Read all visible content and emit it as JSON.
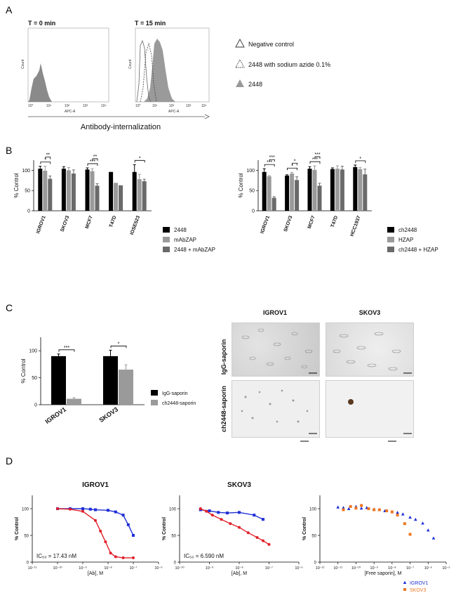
{
  "panels": {
    "a": "A",
    "b": "B",
    "c": "C",
    "d": "D"
  },
  "panel_a": {
    "hist1_title": "T = 0 min",
    "hist2_title": "T = 15 min",
    "y_label": "Count",
    "x_label": "APC-A",
    "x_ticks": [
      "10°",
      "10¹",
      "10²",
      "10³",
      "10⁴"
    ],
    "caption": "Antibody-internalization",
    "legend": [
      "Negative control",
      "2448 with sodium azide 0.1%",
      "2448"
    ]
  },
  "chart_data": [
    {
      "type": "bar",
      "ylabel": "% Control",
      "ylim": [
        0,
        125
      ],
      "yticks": [
        "0",
        "50",
        "100"
      ],
      "categories": [
        "IGROV1",
        "SKOV3",
        "MCF7",
        "T47D",
        "IOSE523"
      ],
      "series": [
        {
          "name": "2448",
          "color": "#000000",
          "values": [
            104,
            104,
            102,
            96,
            96
          ]
        },
        {
          "name": "mAbZAP",
          "color": "#9a9a9a",
          "values": [
            99,
            100,
            98,
            69,
            78
          ]
        },
        {
          "name": "2448 + mAbZAP",
          "color": "#6a6a6a",
          "values": [
            79,
            92,
            62,
            63,
            73
          ]
        }
      ],
      "errors": [
        [
          6,
          5,
          4,
          0,
          18
        ],
        [
          11,
          7,
          6,
          0,
          12
        ],
        [
          7,
          9,
          5,
          0,
          5
        ]
      ],
      "significance": [
        {
          "cat": 0,
          "a": 0,
          "b": 2,
          "label": "*"
        },
        {
          "cat": 0,
          "a": 1,
          "b": 2,
          "label": "**"
        },
        {
          "cat": 2,
          "a": 0,
          "b": 2,
          "label": "***"
        },
        {
          "cat": 2,
          "a": 1,
          "b": 2,
          "label": "**"
        },
        {
          "cat": 4,
          "a": 0,
          "b": 2,
          "label": "*"
        }
      ]
    },
    {
      "type": "bar",
      "ylabel": "% Control",
      "ylim": [
        0,
        125
      ],
      "yticks": [
        "0",
        "50",
        "100"
      ],
      "categories": [
        "IGROV1",
        "SKOV3",
        "MCF7",
        "T47D",
        "HCC1937"
      ],
      "series": [
        {
          "name": "ch2448",
          "color": "#000000",
          "values": [
            96,
            87,
            104,
            103,
            108
          ]
        },
        {
          "name": "HZAP",
          "color": "#9a9a9a",
          "values": [
            85,
            92,
            101,
            104,
            103
          ]
        },
        {
          "name": "ch2448 + HZAP",
          "color": "#6a6a6a",
          "values": [
            32,
            76,
            62,
            102,
            90
          ]
        }
      ],
      "errors": [
        [
          8,
          2,
          5,
          3,
          5
        ],
        [
          2,
          3,
          10,
          7,
          4
        ],
        [
          3,
          8,
          6,
          8,
          13
        ]
      ],
      "significance": [
        {
          "cat": 0,
          "a": 0,
          "b": 2,
          "label": "***"
        },
        {
          "cat": 0,
          "a": 1,
          "b": 2,
          "label": "***"
        },
        {
          "cat": 1,
          "a": 0,
          "b": 2,
          "label": "*"
        },
        {
          "cat": 1,
          "a": 1,
          "b": 2,
          "label": "*"
        },
        {
          "cat": 2,
          "a": 0,
          "b": 2,
          "label": "***"
        },
        {
          "cat": 2,
          "a": 1,
          "b": 2,
          "label": "***"
        },
        {
          "cat": 4,
          "a": 0,
          "b": 2,
          "label": "*"
        }
      ]
    },
    {
      "type": "bar",
      "ylabel": "% Control",
      "ylim": [
        0,
        125
      ],
      "yticks": [
        "0",
        "50",
        "100"
      ],
      "categories": [
        "IGROV1",
        "SKOV3"
      ],
      "series": [
        {
          "name": "IgG-saporin",
          "color": "#000000",
          "values": [
            90,
            90
          ]
        },
        {
          "name": "ch2448-saporin",
          "color": "#9a9a9a",
          "values": [
            11,
            65
          ]
        }
      ],
      "errors": [
        [
          4,
          11
        ],
        [
          2,
          9
        ]
      ],
      "significance": [
        {
          "cat": 0,
          "a": 0,
          "b": 1,
          "label": "***"
        },
        {
          "cat": 1,
          "a": 0,
          "b": 1,
          "label": "*"
        }
      ]
    },
    {
      "type": "line",
      "title": "IGROV1",
      "xlabel": "[Ab], M",
      "ylabel": "% Control",
      "xlim_log10": [
        -11,
        -6
      ],
      "ylim": [
        0,
        125
      ],
      "annotation": "IC₅₀ = 17.43 nM",
      "series": [
        {
          "name": "blue",
          "color": "#1f2fd6",
          "marker": "square",
          "x_log10": [
            -10,
            -9.5,
            -9,
            -8.7,
            -8.5,
            -8,
            -7.7,
            -7.4,
            -7.2,
            -7
          ],
          "y": [
            100,
            100,
            100,
            99,
            98,
            97,
            94,
            88,
            70,
            50
          ]
        },
        {
          "name": "red",
          "color": "#e0202a",
          "marker": "circle",
          "x_log10": [
            -10,
            -9.5,
            -9,
            -8.5,
            -8.3,
            -8.1,
            -7.9,
            -7.7,
            -7.4,
            -7
          ],
          "y": [
            100,
            99,
            95,
            78,
            58,
            38,
            17,
            10,
            8,
            8
          ]
        }
      ]
    },
    {
      "type": "line",
      "title": "SKOV3",
      "xlabel": "[Ab], M",
      "ylabel": "% Control",
      "xlim_log10": [
        -10,
        -6
      ],
      "ylim": [
        0,
        125
      ],
      "annotation": "IC₅₀ = 6.590 nM",
      "series": [
        {
          "name": "blue",
          "color": "#1f2fd6",
          "marker": "square",
          "x_log10": [
            -9.3,
            -9,
            -8.7,
            -8.4,
            -8,
            -7.5,
            -7.2
          ],
          "y": [
            98,
            96,
            93,
            92,
            93,
            88,
            80
          ]
        },
        {
          "name": "red",
          "color": "#e0202a",
          "marker": "circle",
          "x_log10": [
            -9.3,
            -9.1,
            -8.9,
            -8.6,
            -8.3,
            -8,
            -7.7,
            -7.4,
            -7.2,
            -7
          ],
          "y": [
            100,
            95,
            88,
            80,
            72,
            65,
            55,
            46,
            40,
            33
          ]
        }
      ]
    },
    {
      "type": "scatter",
      "xlabel": "[Free saporin], M",
      "ylabel": "% Control",
      "xlim_log10": [
        -12,
        -5
      ],
      "ylim": [
        0,
        125
      ],
      "series": [
        {
          "name": "IGROV1",
          "color": "#1f2fd6",
          "marker": "triangle",
          "x_log10": [
            -11,
            -10.7,
            -10.4,
            -10,
            -9.7,
            -9.4,
            -9,
            -8.7,
            -8.4,
            -8,
            -7.7,
            -7.4,
            -7,
            -6.7,
            -6.3,
            -6,
            -5.7
          ],
          "y": [
            103,
            102,
            100,
            104,
            101,
            102,
            99,
            98,
            96,
            94,
            93,
            90,
            84,
            80,
            73,
            60,
            45
          ]
        },
        {
          "name": "SKOV3",
          "color": "#ee7722",
          "marker": "square",
          "x_log10": [
            -10.7,
            -10.3,
            -10,
            -9.7,
            -9.3,
            -9,
            -8.7,
            -8.3,
            -8,
            -7.7,
            -7.3,
            -7
          ],
          "y": [
            98,
            104,
            101,
            106,
            100,
            98,
            98,
            96,
            94,
            88,
            72,
            52
          ]
        }
      ]
    }
  ],
  "panel_c": {
    "micro_col1": "IGROV1",
    "micro_col2": "SKOV3",
    "micro_row1": "IgG-saporin",
    "micro_row2": "ch2448-saporin"
  },
  "panel_d_axis": {
    "d1_xticks": [
      "10⁻¹¹",
      "10⁻¹⁰",
      "10⁻⁹",
      "10⁻⁸",
      "10⁻⁷",
      "10⁻⁶"
    ],
    "d2_xticks": [
      "10⁻¹⁰",
      "10⁻⁹",
      "10⁻⁸",
      "10⁻⁷",
      "10⁻⁶"
    ],
    "d3_xticks": [
      "10⁻¹²",
      "10⁻¹¹",
      "10⁻¹⁰",
      "10⁻⁹",
      "10⁻⁸",
      "10⁻⁷",
      "10⁻⁶",
      "10⁻⁵"
    ]
  },
  "colors": {
    "black": "#000000",
    "grey": "#9a9a9a",
    "dark_grey": "#6a6a6a",
    "blue": "#1f2fd6",
    "red": "#e0202a",
    "orange": "#ee7722"
  }
}
